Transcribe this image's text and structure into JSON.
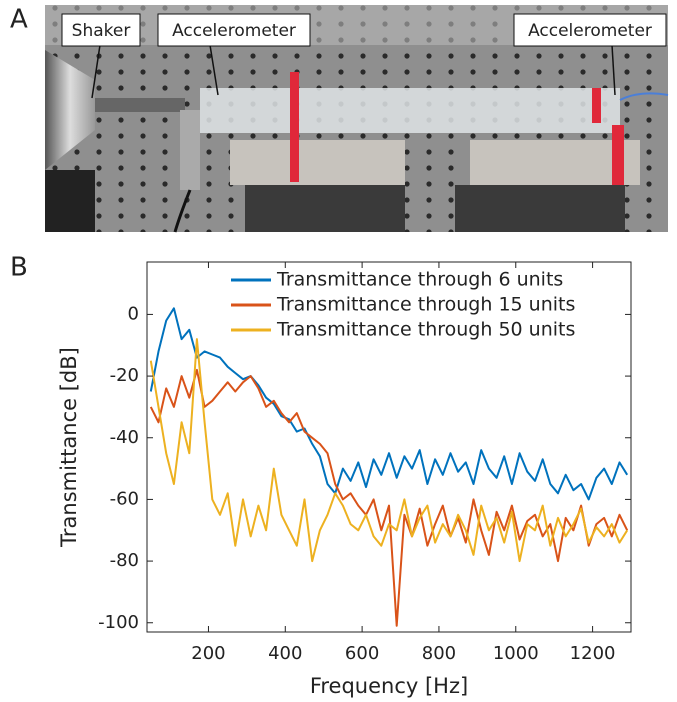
{
  "panel_labels": [
    "A",
    "B"
  ],
  "photo": {
    "labels": [
      "Shaker",
      "Accelerometer",
      "Accelerometer"
    ]
  },
  "chart_data": {
    "type": "line",
    "x_label": "Frequency [Hz]",
    "y_label": "Transmittance [dB]",
    "xlim": [
      40,
      1300
    ],
    "ylim": [
      -103,
      17
    ],
    "xticks": [
      200,
      400,
      600,
      800,
      1000,
      1200
    ],
    "yticks": [
      -100,
      -80,
      -60,
      -40,
      -20,
      0
    ],
    "legend": "top-right",
    "x": [
      50,
      70,
      90,
      110,
      130,
      150,
      170,
      190,
      210,
      230,
      250,
      270,
      290,
      310,
      330,
      350,
      370,
      390,
      410,
      430,
      450,
      470,
      490,
      510,
      530,
      550,
      570,
      590,
      610,
      630,
      650,
      670,
      690,
      710,
      730,
      750,
      770,
      790,
      810,
      830,
      850,
      870,
      890,
      910,
      930,
      950,
      970,
      990,
      1010,
      1030,
      1050,
      1070,
      1090,
      1110,
      1130,
      1150,
      1170,
      1190,
      1210,
      1230,
      1250,
      1270,
      1290
    ],
    "series": [
      {
        "name": "Transmittance through 6 units",
        "color": "#0072BD",
        "values": [
          -25,
          -12,
          -2,
          2,
          -8,
          -5,
          -14,
          -12,
          -13,
          -14,
          -17,
          -19,
          -21,
          -20,
          -23,
          -27,
          -29,
          -33,
          -34,
          -38,
          -37,
          -42,
          -46,
          -55,
          -58,
          -50,
          -54,
          -48,
          -56,
          -47,
          -52,
          -45,
          -53,
          -46,
          -50,
          -44,
          -55,
          -47,
          -52,
          -45,
          -51,
          -48,
          -55,
          -44,
          -50,
          -53,
          -46,
          -55,
          -45,
          -51,
          -54,
          -47,
          -55,
          -58,
          -52,
          -57,
          -55,
          -60,
          -53,
          -50,
          -55,
          -48,
          -52
        ]
      },
      {
        "name": "Transmittance through 15 units",
        "color": "#D95319",
        "values": [
          -30,
          -35,
          -24,
          -30,
          -20,
          -27,
          -18,
          -30,
          -28,
          -25,
          -22,
          -25,
          -22,
          -20,
          -24,
          -30,
          -28,
          -32,
          -35,
          -32,
          -38,
          -40,
          -42,
          -45,
          -55,
          -60,
          -58,
          -62,
          -65,
          -60,
          -70,
          -62,
          -101,
          -65,
          -72,
          -63,
          -75,
          -68,
          -62,
          -72,
          -66,
          -74,
          -60,
          -70,
          -78,
          -64,
          -70,
          -62,
          -73,
          -67,
          -65,
          -72,
          -68,
          -80,
          -66,
          -70,
          -62,
          -75,
          -68,
          -66,
          -72,
          -65,
          -70
        ]
      },
      {
        "name": "Transmittance through 50 units",
        "color": "#EDB120",
        "values": [
          -15,
          -30,
          -45,
          -55,
          -35,
          -45,
          -8,
          -35,
          -60,
          -65,
          -58,
          -75,
          -60,
          -72,
          -62,
          -70,
          -50,
          -65,
          -70,
          -75,
          -60,
          -80,
          -70,
          -65,
          -58,
          -62,
          -68,
          -70,
          -65,
          -72,
          -75,
          -68,
          -70,
          -60,
          -72,
          -66,
          -62,
          -74,
          -68,
          -72,
          -65,
          -70,
          -78,
          -62,
          -70,
          -66,
          -74,
          -64,
          -80,
          -68,
          -70,
          -62,
          -75,
          -66,
          -72,
          -68,
          -63,
          -74,
          -69,
          -72,
          -68,
          -74,
          -70
        ]
      }
    ]
  }
}
